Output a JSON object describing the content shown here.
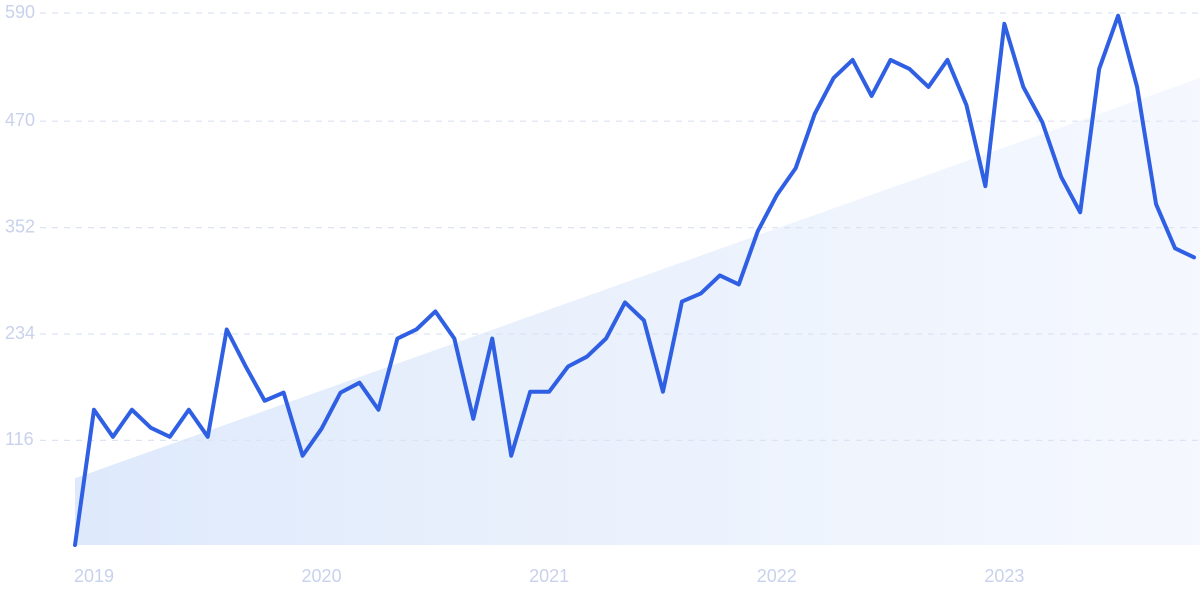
{
  "chart_data": {
    "type": "line",
    "categories": [
      null,
      "2019",
      null,
      null,
      null,
      null,
      null,
      null,
      null,
      null,
      null,
      null,
      null,
      "2020",
      null,
      null,
      null,
      null,
      null,
      null,
      null,
      null,
      null,
      null,
      null,
      "2021",
      null,
      null,
      null,
      null,
      null,
      null,
      null,
      null,
      null,
      null,
      null,
      "2022",
      null,
      null,
      null,
      null,
      null,
      null,
      null,
      null,
      null,
      null,
      null,
      "2023",
      null,
      null,
      null,
      null,
      null,
      null,
      null,
      null,
      null,
      null
    ],
    "values": [
      0,
      150,
      120,
      150,
      130,
      120,
      150,
      120,
      239,
      198,
      160,
      169,
      99,
      129,
      169,
      180,
      150,
      229,
      239,
      259,
      229,
      140,
      229,
      99,
      170,
      170,
      198,
      209,
      229,
      269,
      249,
      170,
      270,
      279,
      299,
      289,
      348,
      388,
      418,
      478,
      518,
      538,
      498,
      538,
      528,
      508,
      538,
      488,
      398,
      578,
      508,
      469,
      408,
      369,
      528,
      587,
      508,
      378,
      329,
      319
    ],
    "color": "#2f5fe3",
    "trend": [
      74,
      518
    ],
    "ylim": [
      0,
      590
    ],
    "yticks": [
      116,
      234,
      352,
      470,
      590
    ],
    "grid": true
  }
}
